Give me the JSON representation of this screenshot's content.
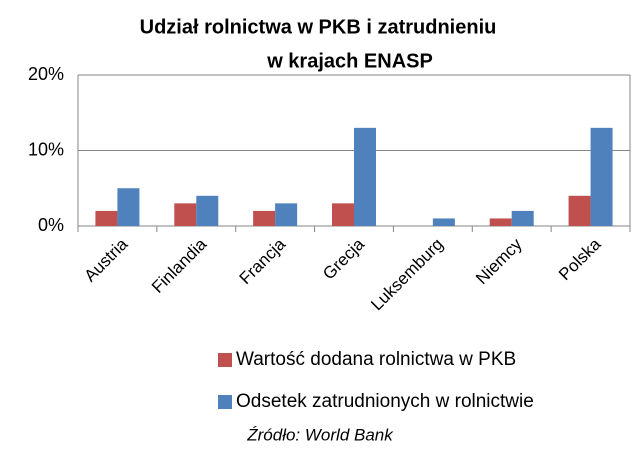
{
  "chart_data": {
    "type": "bar",
    "title": [
      "Udział rolnictwa w PKB i zatrudnieniu",
      "w krajach ENASP"
    ],
    "categories": [
      "Austria",
      "Finlandia",
      "Francja",
      "Grecja",
      "Luksemburg",
      "Niemcy",
      "Polska"
    ],
    "series": [
      {
        "name": "Wartość dodana rolnictwa w PKB",
        "color": "#c0504d",
        "values": [
          2,
          3,
          2,
          3,
          0,
          1,
          4
        ]
      },
      {
        "name": "Odsetek zatrudnionych w rolnictwie",
        "color": "#4f81bd",
        "values": [
          5,
          4,
          3,
          13,
          1,
          2,
          13
        ]
      }
    ],
    "ylim": [
      0,
      20
    ],
    "yticks": [
      {
        "value": 0,
        "label": "0%"
      },
      {
        "value": 10,
        "label": "10%"
      },
      {
        "value": 20,
        "label": "20%"
      }
    ],
    "grid": true,
    "source": "Źródło: World Bank"
  }
}
